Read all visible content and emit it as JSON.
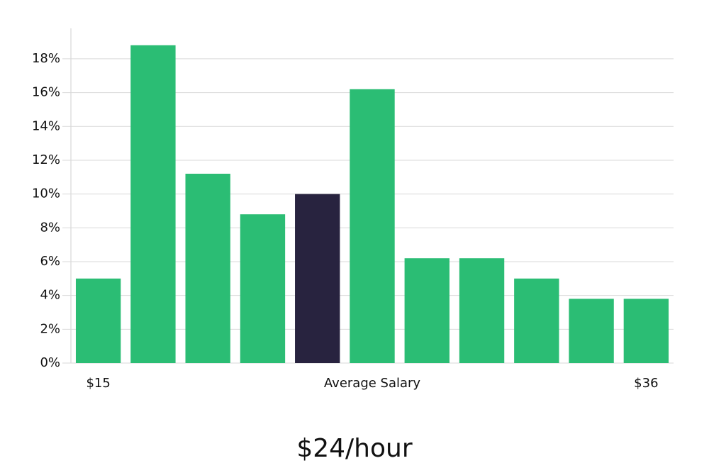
{
  "chart_data": {
    "type": "bar",
    "categories": [
      "$15",
      null,
      null,
      null,
      null,
      null,
      null,
      null,
      null,
      null,
      "$36"
    ],
    "values": [
      5.0,
      18.8,
      11.2,
      8.8,
      10.0,
      16.2,
      6.2,
      6.2,
      5.0,
      3.8,
      3.8
    ],
    "colors": [
      "#2bbd74",
      "#2bbd74",
      "#2bbd74",
      "#2bbd74",
      "#28233f",
      "#2bbd74",
      "#2bbd74",
      "#2bbd74",
      "#2bbd74",
      "#2bbd74",
      "#2bbd74"
    ],
    "xlabel": "Average Salary",
    "annotation": "$24/hour",
    "ylim": [
      0,
      19.8
    ],
    "yticks": [
      {
        "value": 0,
        "label": "0%"
      },
      {
        "value": 2,
        "label": "2%"
      },
      {
        "value": 4,
        "label": "4%"
      },
      {
        "value": 6,
        "label": "6%"
      },
      {
        "value": 8,
        "label": "8%"
      },
      {
        "value": 10,
        "label": "10%"
      },
      {
        "value": 12,
        "label": "12%"
      },
      {
        "value": 14,
        "label": "14%"
      },
      {
        "value": 16,
        "label": "16%"
      },
      {
        "value": 18,
        "label": "18%"
      }
    ],
    "grid": true
  }
}
